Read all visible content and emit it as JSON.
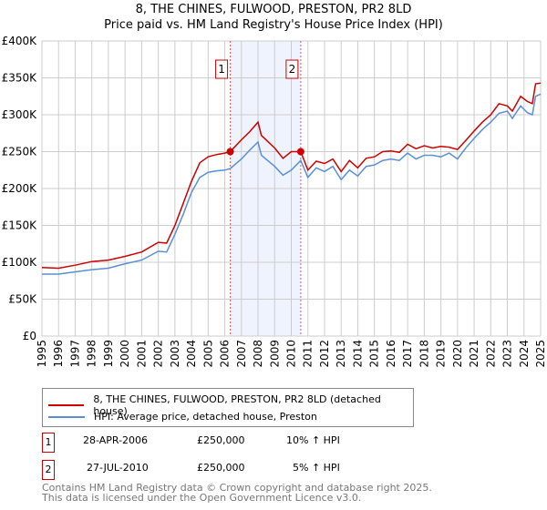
{
  "chart_data": {
    "type": "line",
    "title": "8, THE CHINES, FULWOOD, PRESTON, PR2 8LD",
    "subtitle": "Price paid vs. HM Land Registry's House Price Index (HPI)",
    "xlim": [
      1995,
      2025
    ],
    "ylim": [
      0,
      400000
    ],
    "x_ticks": [
      "1995",
      "1996",
      "1997",
      "1998",
      "1999",
      "2000",
      "2001",
      "2002",
      "2003",
      "2004",
      "2005",
      "2006",
      "2007",
      "2008",
      "2009",
      "2010",
      "2011",
      "2012",
      "2013",
      "2014",
      "2015",
      "2016",
      "2017",
      "2018",
      "2019",
      "2020",
      "2021",
      "2022",
      "2023",
      "2024",
      "2025"
    ],
    "y_ticks": [
      {
        "v": 0,
        "l": "£0"
      },
      {
        "v": 50000,
        "l": "£50K"
      },
      {
        "v": 100000,
        "l": "£100K"
      },
      {
        "v": 150000,
        "l": "£150K"
      },
      {
        "v": 200000,
        "l": "£200K"
      },
      {
        "v": 250000,
        "l": "£250K"
      },
      {
        "v": 300000,
        "l": "£300K"
      },
      {
        "v": 350000,
        "l": "£350K"
      },
      {
        "v": 400000,
        "l": "£400K"
      }
    ],
    "grid": true,
    "x": [
      1995,
      1996,
      1997,
      1998,
      1999,
      2000,
      2001,
      2002,
      2002.5,
      2003,
      2003.5,
      2004,
      2004.5,
      2005,
      2005.5,
      2006,
      2006.33,
      2007,
      2007.5,
      2008,
      2008.2,
      2009,
      2009.5,
      2010,
      2010.57,
      2011,
      2011.5,
      2012,
      2012.5,
      2013,
      2013.5,
      2014,
      2014.5,
      2015,
      2015.5,
      2016,
      2016.5,
      2017,
      2017.5,
      2018,
      2018.5,
      2019,
      2019.5,
      2020,
      2020.5,
      2021,
      2021.5,
      2022,
      2022.5,
      2023,
      2023.3,
      2023.8,
      2024.2,
      2024.5,
      2024.7,
      2025
    ],
    "series": [
      {
        "name": "8, THE CHINES, FULWOOD, PRESTON, PR2 8LD (detached house)",
        "color": "#cc0000",
        "values": [
          93000,
          92000,
          96000,
          101000,
          103000,
          108000,
          114000,
          127000,
          126000,
          150000,
          180000,
          210000,
          235000,
          243000,
          246000,
          248000,
          250000,
          266000,
          277000,
          290000,
          272000,
          255000,
          241000,
          250000,
          250000,
          225000,
          237000,
          234000,
          240000,
          223000,
          238000,
          228000,
          241000,
          243000,
          250000,
          251000,
          249000,
          260000,
          254000,
          258000,
          255000,
          257000,
          256000,
          253000,
          265000,
          278000,
          290000,
          300000,
          315000,
          312000,
          305000,
          325000,
          318000,
          315000,
          342000,
          343000
        ]
      },
      {
        "name": "HPI: Average price, detached house, Preston",
        "color": "#5b8fd4",
        "values": [
          84000,
          84000,
          87000,
          90000,
          92000,
          98000,
          103000,
          115000,
          114000,
          138000,
          165000,
          195000,
          215000,
          222000,
          224000,
          225000,
          227000,
          240000,
          252000,
          263000,
          245000,
          230000,
          218000,
          225000,
          238000,
          215000,
          228000,
          223000,
          230000,
          212000,
          225000,
          217000,
          230000,
          232000,
          238000,
          240000,
          238000,
          248000,
          240000,
          245000,
          245000,
          243000,
          248000,
          240000,
          255000,
          268000,
          280000,
          290000,
          302000,
          305000,
          295000,
          312000,
          303000,
          300000,
          325000,
          328000
        ]
      }
    ],
    "annotations": [
      {
        "label": "1",
        "x": 2006.33,
        "value": 250000
      },
      {
        "label": "2",
        "x": 2010.57,
        "value": 250000
      }
    ],
    "shaded_range": [
      2006.33,
      2010.57
    ],
    "legend_placement": "bottom"
  },
  "legend": {
    "red": "8, THE CHINES, FULWOOD, PRESTON, PR2 8LD (detached house)",
    "blue": "HPI: Average price, detached house, Preston"
  },
  "transactions": [
    {
      "n": "1",
      "date": "28-APR-2006",
      "price": "£250,000",
      "hpi": "10% ↑ HPI"
    },
    {
      "n": "2",
      "date": "27-JUL-2010",
      "price": "£250,000",
      "hpi": "5% ↑ HPI"
    }
  ],
  "footer": {
    "line1": "Contains HM Land Registry data © Crown copyright and database right 2025.",
    "line2": "This data is licensed under the Open Government Licence v3.0."
  }
}
